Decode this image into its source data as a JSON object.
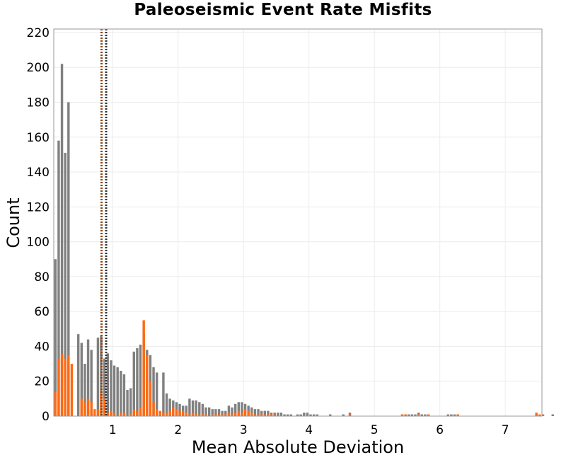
{
  "chart_data": {
    "type": "bar",
    "title": "Paleoseismic Event Rate Misfits",
    "xlabel": "Mean Absolute Deviation",
    "ylabel": "Count",
    "xlim": [
      0.1,
      7.56
    ],
    "ylim": [
      0,
      222
    ],
    "bin_width": 0.05,
    "bin_start": 0.125,
    "x_ticks": [
      1,
      2,
      3,
      4,
      5,
      6,
      7
    ],
    "y_ticks": [
      0,
      20,
      40,
      60,
      80,
      100,
      120,
      140,
      160,
      180,
      200,
      220
    ],
    "grid": true,
    "legend": "none",
    "series": [
      {
        "color": "#808080",
        "values": [
          90,
          158,
          202,
          151,
          180,
          0,
          0,
          47,
          42,
          30,
          44,
          38,
          0,
          45,
          46,
          33,
          36,
          32,
          29,
          28,
          26,
          24,
          15,
          16,
          37,
          39,
          41,
          47,
          38,
          35,
          28,
          25,
          0,
          25,
          13,
          10,
          9,
          8,
          7,
          6,
          6,
          10,
          9,
          9,
          8,
          7,
          5,
          5,
          4,
          4,
          4,
          3,
          3,
          6,
          5,
          7,
          8,
          8,
          7,
          6,
          5,
          4,
          4,
          3,
          3,
          3,
          2,
          2,
          2,
          2,
          1,
          1,
          1,
          0,
          1,
          1,
          2,
          2,
          1,
          1,
          1,
          0,
          0,
          0,
          1,
          0,
          0,
          0,
          1,
          0,
          2,
          0,
          0,
          0,
          0,
          0,
          0,
          0,
          0,
          0,
          0,
          0,
          0,
          0,
          0,
          0,
          1,
          1,
          1,
          1,
          1,
          2,
          1,
          1,
          1,
          0,
          0,
          0,
          0,
          0,
          1,
          1,
          1,
          1,
          0,
          0,
          0,
          0,
          0,
          0,
          0,
          0,
          0,
          0,
          0,
          0,
          0,
          0,
          0,
          0,
          0,
          0,
          0,
          0,
          0,
          0,
          0,
          1,
          1,
          1,
          0,
          0,
          1
        ],
        "values_note": ""
      },
      {
        "color": "#ff6a13",
        "values": [
          14,
          33,
          36,
          33,
          35,
          30,
          0,
          0,
          10,
          8,
          10,
          8,
          4,
          4,
          14,
          10,
          2,
          3,
          2,
          0,
          2,
          2,
          0,
          1,
          4,
          3,
          5,
          55,
          35,
          20,
          8,
          4,
          3,
          2,
          2,
          3,
          5,
          4,
          3,
          3,
          2,
          1,
          2,
          1,
          1,
          1,
          1,
          0,
          1,
          1,
          1,
          1,
          1,
          2,
          1,
          2,
          3,
          2,
          4,
          3,
          2,
          1,
          1,
          1,
          1,
          1,
          1,
          1,
          0,
          0,
          0,
          0,
          0,
          0,
          0,
          0,
          0,
          0,
          0,
          0,
          0,
          0,
          0,
          0,
          0,
          0,
          0,
          0,
          0,
          0,
          1,
          0,
          0,
          0,
          0,
          0,
          0,
          0,
          0,
          0,
          0,
          0,
          0,
          0,
          0,
          0,
          1,
          1,
          0,
          0,
          0,
          1,
          0,
          0,
          1,
          0,
          0,
          0,
          0,
          0,
          0,
          0,
          0,
          1,
          0,
          0,
          0,
          0,
          0,
          0,
          0,
          0,
          0,
          0,
          0,
          0,
          0,
          0,
          0,
          0,
          0,
          0,
          0,
          0,
          0,
          0,
          0,
          2,
          1,
          1,
          0,
          0,
          0
        ]
      }
    ],
    "reference_lines": [
      {
        "x": 0.83,
        "color": "#8b4513",
        "style": "dotted"
      },
      {
        "x": 0.9,
        "color": "#333333",
        "style": "dotted"
      }
    ]
  }
}
